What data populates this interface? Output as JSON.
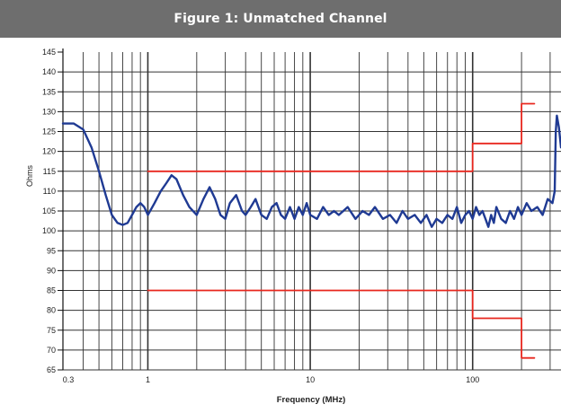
{
  "chart_data": {
    "type": "line",
    "title": "Figure 1: Unmatched Channel",
    "xlabel": "Frequency (MHz)",
    "ylabel": "Ohms",
    "x_scale": "log",
    "xlim": [
      0.3,
      350
    ],
    "ylim": [
      65,
      145
    ],
    "grid": true,
    "x_tick_labels": [
      {
        "value": 0.3,
        "label": "0.3"
      },
      {
        "value": 1,
        "label": "1"
      },
      {
        "value": 10,
        "label": "10"
      },
      {
        "value": 100,
        "label": "100"
      }
    ],
    "y_ticks": [
      65,
      70,
      75,
      80,
      85,
      90,
      95,
      100,
      105,
      110,
      115,
      120,
      125,
      130,
      135,
      140,
      145
    ],
    "colors": {
      "impedance": "#1f3a93",
      "limit": "#e8271e",
      "grid": "#333333"
    },
    "series": [
      {
        "role": "impedance",
        "x": [
          0.3,
          0.35,
          0.4,
          0.45,
          0.5,
          0.55,
          0.6,
          0.65,
          0.7,
          0.75,
          0.8,
          0.85,
          0.9,
          0.95,
          1.0,
          1.1,
          1.2,
          1.3,
          1.4,
          1.5,
          1.65,
          1.8,
          2.0,
          2.2,
          2.4,
          2.6,
          2.8,
          3.0,
          3.2,
          3.5,
          3.8,
          4.0,
          4.3,
          4.6,
          5.0,
          5.4,
          5.8,
          6.2,
          6.6,
          7.0,
          7.5,
          8.0,
          8.5,
          9.0,
          9.5,
          10,
          11,
          12,
          13,
          14,
          15,
          17,
          19,
          21,
          23,
          25,
          28,
          31,
          34,
          37,
          40,
          44,
          48,
          52,
          56,
          60,
          65,
          70,
          75,
          80,
          85,
          90,
          95,
          100,
          105,
          110,
          115,
          120,
          125,
          130,
          135,
          140,
          150,
          160,
          170,
          180,
          190,
          200,
          215,
          230,
          250,
          270,
          290,
          310,
          320,
          325,
          330,
          340,
          350
        ],
        "y": [
          127,
          127,
          125.5,
          121,
          115,
          109,
          104,
          102,
          101.5,
          102,
          104,
          106,
          107,
          106,
          104,
          107,
          110,
          112,
          114,
          113,
          109,
          106,
          104,
          108,
          111,
          108,
          104,
          103,
          107,
          109,
          105,
          104,
          106,
          108,
          104,
          103,
          106,
          107,
          104,
          103,
          106,
          103,
          106,
          104,
          107,
          104,
          103,
          106,
          104,
          105,
          104,
          106,
          103,
          105,
          104,
          106,
          103,
          104,
          102,
          105,
          103,
          104,
          102,
          104,
          101,
          103,
          102,
          104,
          103,
          106,
          102,
          104,
          105,
          103,
          106,
          104,
          105,
          103,
          101,
          104,
          102,
          106,
          103,
          102,
          105,
          103,
          106,
          104,
          107,
          105,
          106,
          104,
          108,
          107,
          110,
          125,
          129,
          126,
          121
        ]
      },
      {
        "role": "upper-limit",
        "x": [
          1,
          100,
          100,
          200,
          200,
          240
        ],
        "y": [
          115,
          115,
          122,
          122,
          132,
          132
        ]
      },
      {
        "role": "lower-limit",
        "x": [
          1,
          100,
          100,
          200,
          200,
          240
        ],
        "y": [
          85,
          85,
          78,
          78,
          68,
          68
        ]
      }
    ]
  }
}
